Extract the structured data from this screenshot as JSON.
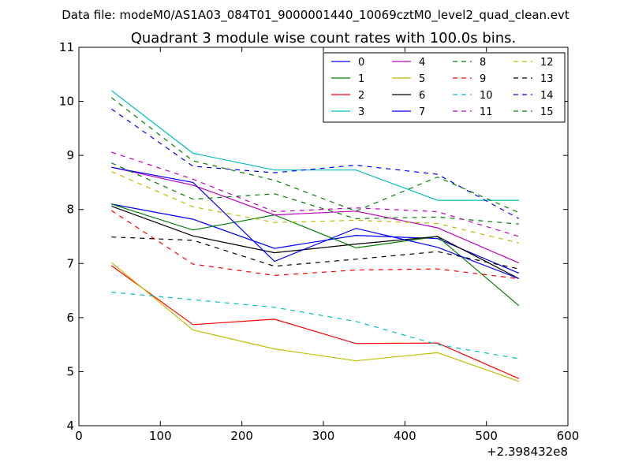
{
  "suptitle": "Data file: modeM0/AS1A03_084T01_9000001440_10069cztM0_level2_quad_clean.evt",
  "chart_data": {
    "type": "line",
    "title": "Quadrant 3 module wise count rates with 100.0s bins.",
    "xlabel": "",
    "ylabel": "",
    "x_offset_label": "+2.398432e8",
    "xlim": [
      0,
      600
    ],
    "ylim": [
      4,
      11
    ],
    "xticks": [
      0,
      100,
      200,
      300,
      400,
      500,
      600
    ],
    "yticks": [
      4,
      5,
      6,
      7,
      8,
      9,
      10,
      11
    ],
    "grid": false,
    "legend_position": "top-right",
    "legend_columns": 4,
    "x": [
      40,
      140,
      240,
      340,
      440,
      540
    ],
    "series": [
      {
        "name": "0",
        "color": "#0000ff",
        "dash": "solid",
        "values": [
          8.1,
          7.82,
          7.28,
          7.52,
          7.46,
          6.82
        ]
      },
      {
        "name": "1",
        "color": "#008000",
        "dash": "solid",
        "values": [
          8.1,
          7.62,
          7.9,
          7.29,
          7.5,
          6.22
        ]
      },
      {
        "name": "2",
        "color": "#ff0000",
        "dash": "solid",
        "values": [
          6.96,
          5.87,
          5.97,
          5.52,
          5.53,
          4.87
        ]
      },
      {
        "name": "3",
        "color": "#00bfbf",
        "dash": "solid",
        "values": [
          10.2,
          9.04,
          8.73,
          8.73,
          8.17,
          8.17
        ]
      },
      {
        "name": "4",
        "color": "#bf00bf",
        "dash": "solid",
        "values": [
          8.78,
          8.45,
          7.9,
          7.97,
          7.66,
          7.01
        ]
      },
      {
        "name": "5",
        "color": "#bfbf00",
        "dash": "solid",
        "values": [
          7.02,
          5.77,
          5.42,
          5.2,
          5.35,
          4.82
        ]
      },
      {
        "name": "6",
        "color": "#000000",
        "dash": "solid",
        "values": [
          8.06,
          7.51,
          7.2,
          7.36,
          7.5,
          6.72
        ]
      },
      {
        "name": "7",
        "color": "#0000ff",
        "dash": "solid",
        "values": [
          8.78,
          8.5,
          7.04,
          7.65,
          7.3,
          6.72
        ]
      },
      {
        "name": "8",
        "color": "#008000",
        "dash": "dashed",
        "values": [
          8.86,
          8.19,
          8.29,
          7.83,
          7.86,
          7.73
        ]
      },
      {
        "name": "9",
        "color": "#ff0000",
        "dash": "dashed",
        "values": [
          7.98,
          6.99,
          6.78,
          6.88,
          6.9,
          6.72
        ]
      },
      {
        "name": "10",
        "color": "#00bfbf",
        "dash": "dashed",
        "values": [
          6.47,
          6.33,
          6.19,
          5.93,
          5.5,
          5.24
        ]
      },
      {
        "name": "11",
        "color": "#bf00bf",
        "dash": "dashed",
        "values": [
          9.06,
          8.56,
          7.96,
          8.03,
          7.96,
          7.5
        ]
      },
      {
        "name": "12",
        "color": "#bfbf00",
        "dash": "dashed",
        "values": [
          8.7,
          8.05,
          7.76,
          7.8,
          7.74,
          7.38
        ]
      },
      {
        "name": "13",
        "color": "#000000",
        "dash": "dashed",
        "values": [
          7.49,
          7.43,
          6.95,
          7.08,
          7.22,
          6.9
        ]
      },
      {
        "name": "14",
        "color": "#0000ff",
        "dash": "dashed",
        "values": [
          9.86,
          8.8,
          8.68,
          8.82,
          8.65,
          7.83
        ]
      },
      {
        "name": "15",
        "color": "#008000",
        "dash": "dashed",
        "values": [
          10.07,
          8.9,
          8.54,
          7.97,
          8.6,
          7.94
        ]
      }
    ]
  }
}
